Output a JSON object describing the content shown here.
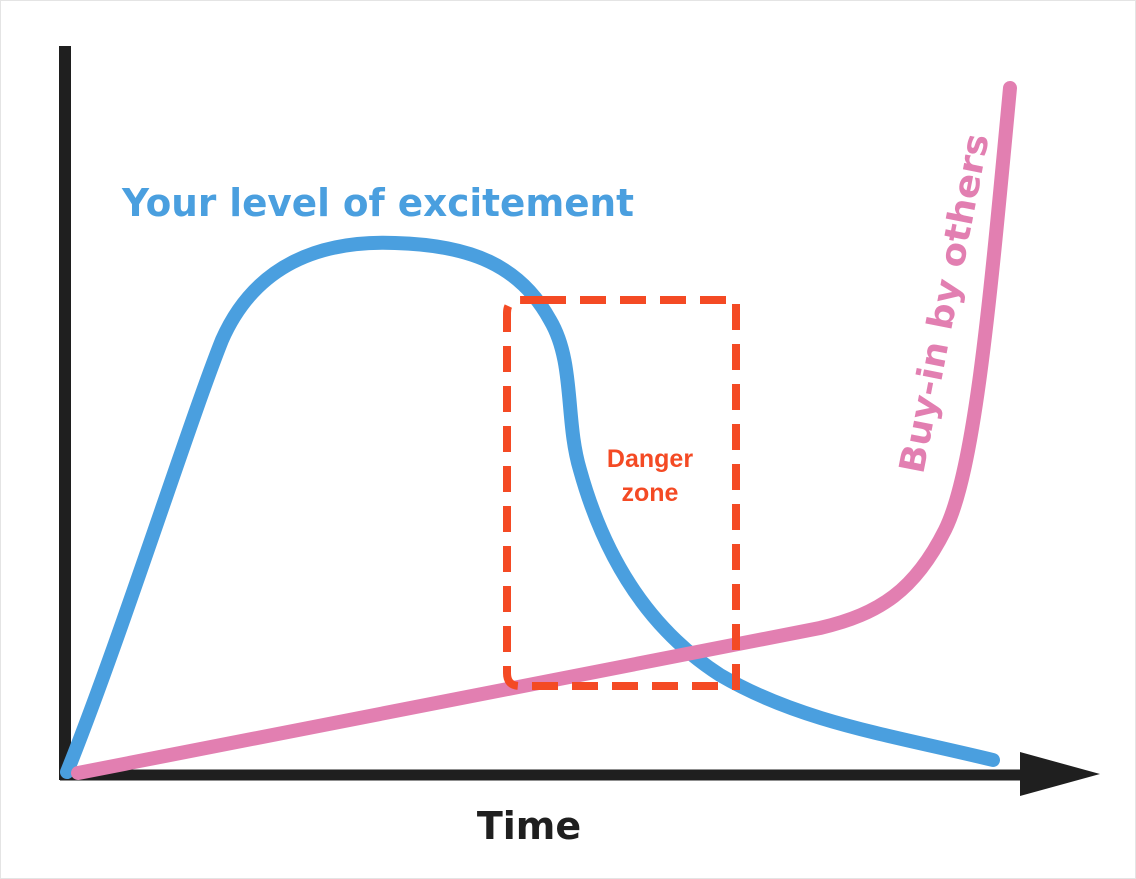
{
  "labels": {
    "excitement": "Your level of excitement",
    "buy_in": "Buy-in by others",
    "danger_line1": "Danger",
    "danger_line2": "zone",
    "x_axis": "Time"
  },
  "colors": {
    "axis": "#1f1f1f",
    "excitement": "#4a9fdf",
    "buy_in": "#e27fb1",
    "danger": "#f44a24",
    "background": "#ffffff",
    "frame": "#e4e4e4"
  }
}
